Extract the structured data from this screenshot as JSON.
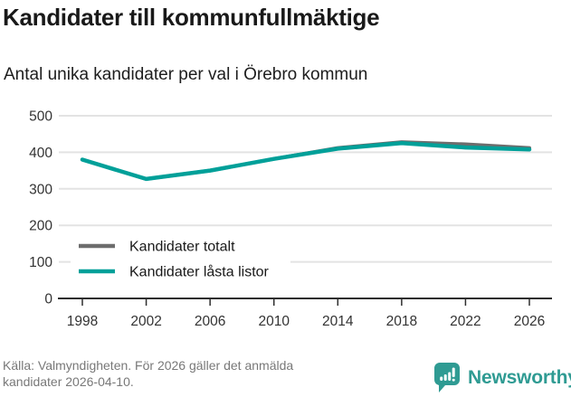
{
  "header": {
    "title": "Kandidater till kommunfullmäktige",
    "subtitle": "Antal unika kandidater per val i Örebro kommun"
  },
  "chart_data": {
    "type": "line",
    "x": [
      1998,
      2002,
      2006,
      2010,
      2014,
      2018,
      2022,
      2026
    ],
    "series": [
      {
        "name": "Kandidater totalt",
        "color": "#6d6d6d",
        "values": [
          380,
          327,
          350,
          382,
          412,
          428,
          422,
          412
        ]
      },
      {
        "name": "Kandidater låsta listor",
        "color": "#00a099",
        "values": [
          380,
          327,
          350,
          382,
          410,
          425,
          413,
          408
        ]
      }
    ],
    "title": "Kandidater till kommunfullmäktige",
    "subtitle": "Antal unika kandidater per val i Örebro kommun",
    "xlabel": "",
    "ylabel": "",
    "ylim": [
      0,
      500
    ],
    "yticks": [
      0,
      100,
      200,
      300,
      400,
      500
    ],
    "grid": true,
    "legend_position": "inside-bottom-left"
  },
  "colors": {
    "grid": "#e3e3e3",
    "axis": "#2e2e2e",
    "tick_label": "#333333",
    "legend_text": "#191919",
    "brand_teal": "#2f9b93"
  },
  "footer": {
    "source": "Källa: Valmyndigheten. För 2026 gäller det anmälda kandidater 2026-04-10.",
    "brand": "Newsworthy"
  }
}
